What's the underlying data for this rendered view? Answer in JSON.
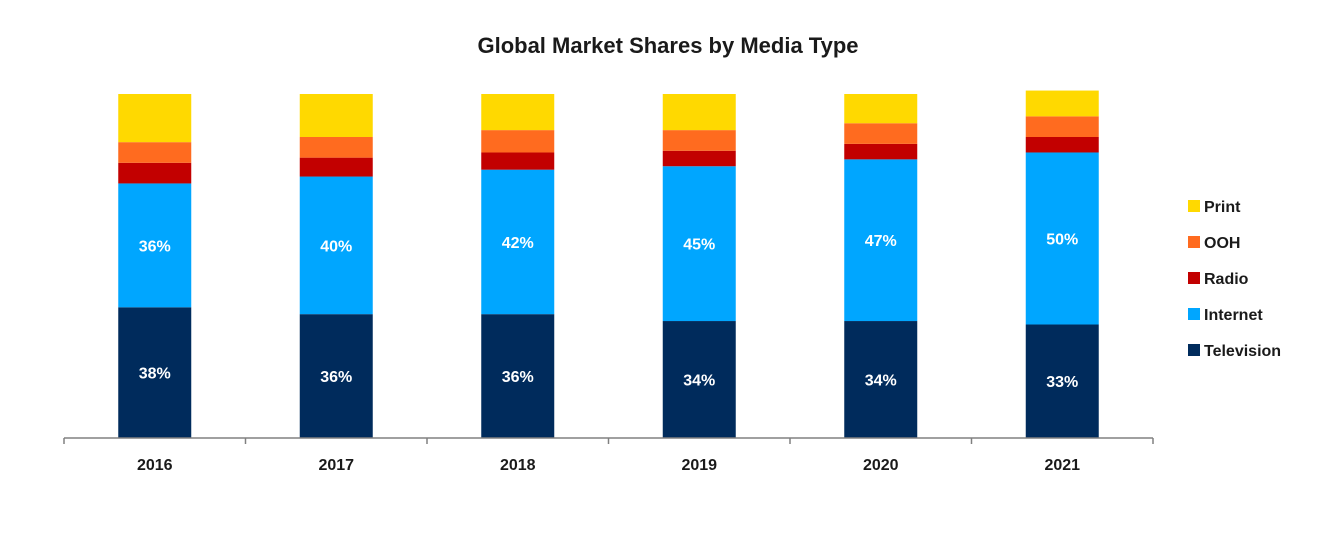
{
  "chart_data": {
    "type": "bar",
    "stacked": true,
    "normalized": true,
    "title": "Global Market Shares by Media Type",
    "xlabel": "",
    "ylabel": "",
    "ylim": [
      0,
      100
    ],
    "grid": false,
    "legend_position": "right",
    "categories": [
      "2016",
      "2017",
      "2018",
      "2019",
      "2020",
      "2021"
    ],
    "series": [
      {
        "name": "Television",
        "color": "#002b5c",
        "values": [
          38,
          36,
          36,
          34,
          34,
          33
        ],
        "labels": [
          "38%",
          "36%",
          "36%",
          "34%",
          "34%",
          "33%"
        ]
      },
      {
        "name": "Internet",
        "color": "#00a6ff",
        "values": [
          36,
          40,
          42,
          45,
          47,
          50
        ],
        "labels": [
          "36%",
          "40%",
          "42%",
          "45%",
          "47%",
          "50%"
        ]
      },
      {
        "name": "Radio",
        "color": "#c20000",
        "values": [
          6,
          5.5,
          5,
          4.5,
          4.5,
          4.5
        ],
        "labels": []
      },
      {
        "name": "OOH",
        "color": "#ff6b1f",
        "values": [
          6,
          6,
          6.5,
          6,
          6,
          6
        ],
        "labels": []
      },
      {
        "name": "Print",
        "color": "#ffd900",
        "values": [
          14,
          12.5,
          10.5,
          10.5,
          8.5,
          7.5
        ],
        "labels": []
      }
    ],
    "legend_order": [
      "Print",
      "OOH",
      "Radio",
      "Internet",
      "Television"
    ]
  }
}
